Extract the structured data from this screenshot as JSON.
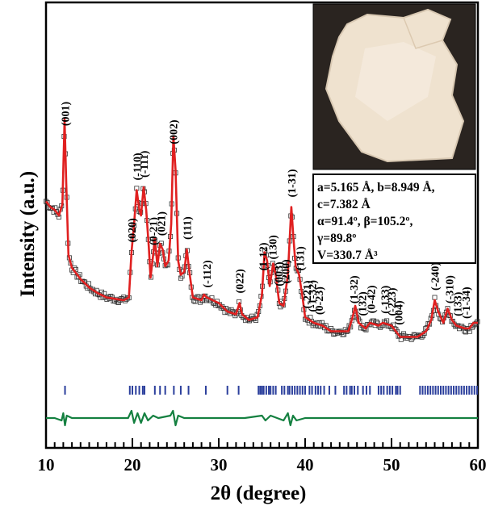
{
  "chart_data": {
    "type": "line",
    "xlabel": "2θ (degree)",
    "ylabel": "Intensity (a.u.)",
    "xlim": [
      10,
      60
    ],
    "x_ticks": [
      "10",
      "20",
      "30",
      "40",
      "50",
      "60"
    ],
    "y_scale": "arbitrary units, no tick labels",
    "grid": false,
    "series": [],
    "observed_markers": "open squares",
    "colors": {
      "calculated": "#e02020",
      "observed": "#333333",
      "difference": "#148040",
      "bragg": "#2b3f9c"
    },
    "profile_points": [
      [
        10.0,
        0.63
      ],
      [
        10.5,
        0.61
      ],
      [
        11.0,
        0.6
      ],
      [
        11.5,
        0.58
      ],
      [
        11.9,
        0.62
      ],
      [
        12.15,
        0.92
      ],
      [
        12.35,
        0.69
      ],
      [
        12.6,
        0.44
      ],
      [
        13.0,
        0.395
      ],
      [
        14.0,
        0.355
      ],
      [
        15.0,
        0.325
      ],
      [
        16.0,
        0.305
      ],
      [
        17.0,
        0.29
      ],
      [
        18.0,
        0.285
      ],
      [
        19.0,
        0.28
      ],
      [
        19.6,
        0.29
      ],
      [
        19.9,
        0.45
      ],
      [
        20.2,
        0.55
      ],
      [
        20.5,
        0.67
      ],
      [
        20.8,
        0.6
      ],
      [
        21.0,
        0.58
      ],
      [
        21.3,
        0.68
      ],
      [
        21.6,
        0.6
      ],
      [
        21.9,
        0.47
      ],
      [
        22.1,
        0.36
      ],
      [
        22.4,
        0.44
      ],
      [
        22.6,
        0.5
      ],
      [
        22.9,
        0.4
      ],
      [
        23.2,
        0.48
      ],
      [
        23.5,
        0.46
      ],
      [
        23.8,
        0.4
      ],
      [
        24.2,
        0.42
      ],
      [
        24.5,
        0.55
      ],
      [
        24.75,
        0.86
      ],
      [
        25.0,
        0.74
      ],
      [
        25.3,
        0.42
      ],
      [
        25.6,
        0.37
      ],
      [
        26.0,
        0.38
      ],
      [
        26.3,
        0.46
      ],
      [
        26.6,
        0.38
      ],
      [
        27.0,
        0.29
      ],
      [
        28.0,
        0.28
      ],
      [
        28.3,
        0.3
      ],
      [
        28.6,
        0.29
      ],
      [
        30.0,
        0.27
      ],
      [
        31.0,
        0.24
      ],
      [
        32.0,
        0.23
      ],
      [
        32.4,
        0.27
      ],
      [
        32.7,
        0.23
      ],
      [
        33.5,
        0.21
      ],
      [
        34.5,
        0.22
      ],
      [
        35.0,
        0.3
      ],
      [
        35.3,
        0.45
      ],
      [
        35.6,
        0.42
      ],
      [
        35.9,
        0.33
      ],
      [
        36.3,
        0.41
      ],
      [
        36.6,
        0.37
      ],
      [
        37.0,
        0.27
      ],
      [
        37.5,
        0.26
      ],
      [
        38.0,
        0.37
      ],
      [
        38.4,
        0.61
      ],
      [
        38.6,
        0.52
      ],
      [
        38.9,
        0.4
      ],
      [
        39.3,
        0.37
      ],
      [
        39.7,
        0.29
      ],
      [
        40.0,
        0.22
      ],
      [
        41.0,
        0.2
      ],
      [
        42.0,
        0.19
      ],
      [
        43.0,
        0.17
      ],
      [
        44.0,
        0.17
      ],
      [
        45.0,
        0.17
      ],
      [
        45.5,
        0.22
      ],
      [
        45.8,
        0.26
      ],
      [
        46.2,
        0.2
      ],
      [
        47.0,
        0.18
      ],
      [
        47.5,
        0.2
      ],
      [
        48.5,
        0.19
      ],
      [
        49.0,
        0.2
      ],
      [
        50.0,
        0.19
      ],
      [
        51.0,
        0.15
      ],
      [
        52.0,
        0.15
      ],
      [
        53.0,
        0.15
      ],
      [
        54.0,
        0.17
      ],
      [
        54.6,
        0.21
      ],
      [
        55.0,
        0.28
      ],
      [
        55.4,
        0.24
      ],
      [
        56.0,
        0.2
      ],
      [
        56.5,
        0.25
      ],
      [
        57.0,
        0.21
      ],
      [
        57.5,
        0.19
      ],
      [
        58.5,
        0.18
      ],
      [
        59.0,
        0.18
      ],
      [
        59.5,
        0.2
      ],
      [
        60.0,
        0.2
      ]
    ],
    "bragg_positions": [
      12.2,
      19.7,
      20.0,
      20.4,
      20.8,
      21.2,
      21.4,
      22.6,
      23.2,
      23.8,
      24.8,
      25.6,
      26.5,
      28.5,
      31.0,
      32.3,
      34.6,
      34.8,
      35.0,
      35.2,
      35.5,
      35.8,
      36.0,
      36.3,
      36.6,
      37.3,
      37.6,
      38.0,
      38.2,
      38.5,
      38.8,
      39.1,
      39.4,
      39.7,
      40.0,
      40.5,
      40.8,
      41.2,
      41.5,
      41.8,
      42.2,
      42.8,
      43.5,
      44.5,
      44.8,
      45.2,
      45.4,
      45.7,
      46.1,
      46.7,
      47.1,
      47.5,
      48.5,
      48.8,
      49.1,
      49.5,
      49.8,
      50.1,
      50.5,
      50.7,
      51.0,
      53.3,
      53.6,
      53.9,
      54.2,
      54.5,
      54.8,
      55.1,
      55.4,
      55.7,
      56.0,
      56.3,
      56.6,
      56.9,
      57.2,
      57.5,
      57.8,
      58.1,
      58.4,
      58.7,
      59.0,
      59.3,
      59.6,
      59.9
    ],
    "difference_points": [
      [
        10.0,
        0.0
      ],
      [
        11.0,
        0.0
      ],
      [
        11.8,
        -0.01
      ],
      [
        12.0,
        0.02
      ],
      [
        12.2,
        -0.03
      ],
      [
        12.4,
        0.01
      ],
      [
        13.0,
        0.0
      ],
      [
        19.5,
        0.0
      ],
      [
        19.9,
        0.03
      ],
      [
        20.2,
        -0.02
      ],
      [
        20.6,
        0.02
      ],
      [
        21.0,
        -0.02
      ],
      [
        21.4,
        0.02
      ],
      [
        21.8,
        -0.01
      ],
      [
        22.4,
        0.01
      ],
      [
        23.0,
        0.0
      ],
      [
        24.4,
        0.01
      ],
      [
        24.7,
        0.03
      ],
      [
        25.0,
        -0.03
      ],
      [
        25.3,
        0.01
      ],
      [
        26.0,
        0.0
      ],
      [
        33.0,
        0.0
      ],
      [
        35.0,
        0.01
      ],
      [
        35.4,
        -0.01
      ],
      [
        36.0,
        0.01
      ],
      [
        37.5,
        -0.01
      ],
      [
        38.0,
        0.02
      ],
      [
        38.3,
        -0.03
      ],
      [
        38.6,
        0.01
      ],
      [
        39.0,
        -0.01
      ],
      [
        40.0,
        0.0
      ],
      [
        60.0,
        0.0
      ]
    ],
    "reflections": [
      {
        "x": 12.2,
        "label": "(001)"
      },
      {
        "x": 19.9,
        "label": "(020)"
      },
      {
        "x": 20.5,
        "label": "(-110)"
      },
      {
        "x": 21.3,
        "label": "(-111)"
      },
      {
        "x": 22.4,
        "label": "(0-21)"
      },
      {
        "x": 23.3,
        "label": "(021)"
      },
      {
        "x": 24.7,
        "label": "(002)"
      },
      {
        "x": 26.3,
        "label": "(111)"
      },
      {
        "x": 28.6,
        "label": "(-112)"
      },
      {
        "x": 32.4,
        "label": "(022)"
      },
      {
        "x": 35.1,
        "label": "(1-12)"
      },
      {
        "x": 36.2,
        "label": "(130)"
      },
      {
        "x": 36.9,
        "label": "(003)"
      },
      {
        "x": 37.7,
        "label": "(200)"
      },
      {
        "x": 38.4,
        "label": "(1-31)"
      },
      {
        "x": 39.4,
        "label": "(131)"
      },
      {
        "x": 40.2,
        "label": "(-221)"
      },
      {
        "x": 40.8,
        "label": "(-1-32)"
      },
      {
        "x": 41.6,
        "label": "(0-23)"
      },
      {
        "x": 45.6,
        "label": "(1-32)"
      },
      {
        "x": 46.6,
        "label": "(132)"
      },
      {
        "x": 47.6,
        "label": "(0-42)"
      },
      {
        "x": 49.2,
        "label": "(-133)"
      },
      {
        "x": 50.0,
        "label": "(-223)"
      },
      {
        "x": 50.8,
        "label": "(004)"
      },
      {
        "x": 55.0,
        "label": "(-240)"
      },
      {
        "x": 56.7,
        "label": "(-310)"
      },
      {
        "x": 57.6,
        "label": "(133)"
      },
      {
        "x": 58.6,
        "label": "(-1-34)"
      }
    ]
  },
  "lattice": {
    "line1": "a=5.165 Å, b=8.949 Å,",
    "line2": "c=7.382 Å",
    "line3": "α=91.4º, β=105.2º,",
    "line4": "γ=89.8º",
    "line5": "V=330.7 Å³"
  }
}
